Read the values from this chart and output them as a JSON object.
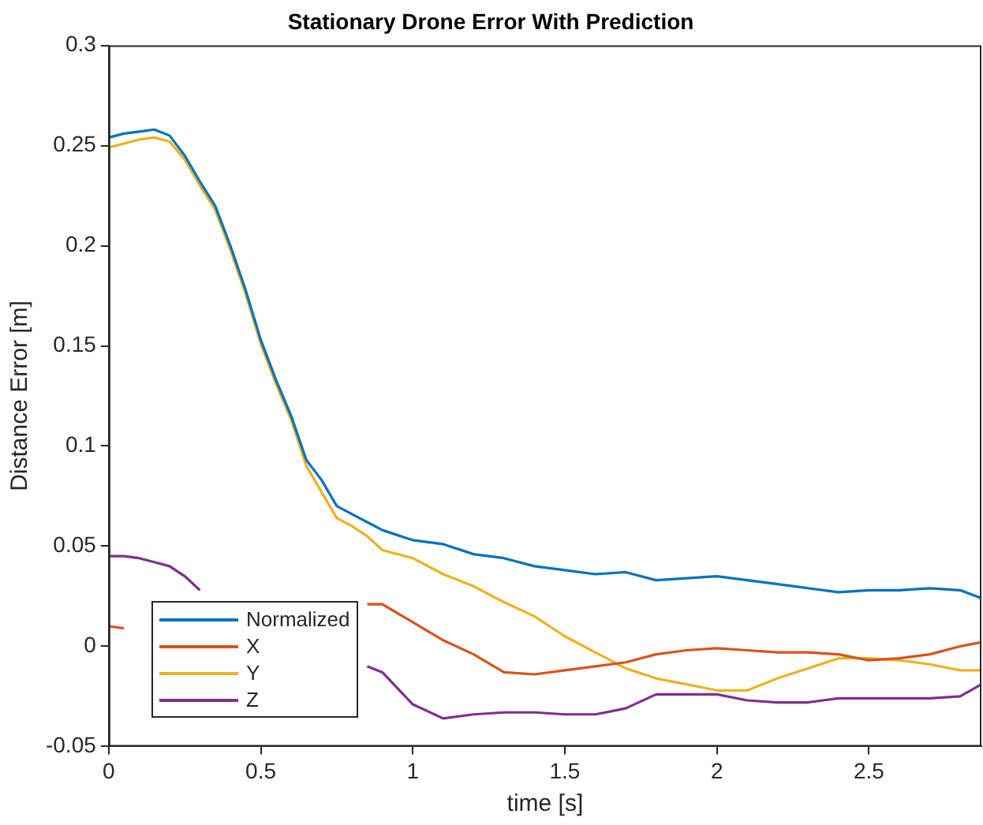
{
  "chart_data": {
    "type": "line",
    "title": "Stationary Drone Error With Prediction",
    "xlabel": "time [s]",
    "ylabel": "Distance Error [m]",
    "x": [
      0,
      0.05,
      0.1,
      0.15,
      0.2,
      0.25,
      0.3,
      0.35,
      0.4,
      0.45,
      0.5,
      0.55,
      0.6,
      0.65,
      0.7,
      0.75,
      0.8,
      0.85,
      0.9,
      1.0,
      1.1,
      1.2,
      1.3,
      1.4,
      1.5,
      1.6,
      1.7,
      1.8,
      1.9,
      2.0,
      2.1,
      2.2,
      2.3,
      2.4,
      2.5,
      2.6,
      2.7,
      2.8,
      2.87
    ],
    "series": [
      {
        "name": "Normalized",
        "color": "#0072bd",
        "values": [
          0.254,
          0.256,
          0.257,
          0.258,
          0.255,
          0.245,
          0.232,
          0.22,
          0.2,
          0.178,
          0.153,
          0.133,
          0.115,
          0.093,
          0.083,
          0.07,
          0.066,
          0.062,
          0.058,
          0.053,
          0.051,
          0.046,
          0.044,
          0.04,
          0.038,
          0.036,
          0.037,
          0.033,
          0.034,
          0.035,
          0.033,
          0.031,
          0.029,
          0.027,
          0.028,
          0.028,
          0.029,
          0.028,
          0.024
        ]
      },
      {
        "name": "X",
        "color": "#d95319",
        "values": [
          0.01,
          0.009,
          null,
          null,
          null,
          null,
          null,
          null,
          null,
          null,
          null,
          null,
          null,
          null,
          null,
          null,
          null,
          0.021,
          0.021,
          0.012,
          0.003,
          -0.004,
          -0.013,
          -0.014,
          -0.012,
          -0.01,
          -0.008,
          -0.004,
          -0.002,
          -0.001,
          -0.002,
          -0.003,
          -0.003,
          -0.004,
          -0.007,
          -0.006,
          -0.004,
          0.0,
          0.002
        ]
      },
      {
        "name": "Y",
        "color": "#edb120",
        "values": [
          0.249,
          0.251,
          0.253,
          0.254,
          0.252,
          0.243,
          0.23,
          0.218,
          0.198,
          0.176,
          0.151,
          0.131,
          0.113,
          0.09,
          0.077,
          0.064,
          0.06,
          0.055,
          0.048,
          0.044,
          0.036,
          0.03,
          0.022,
          0.015,
          0.005,
          -0.003,
          -0.011,
          -0.016,
          -0.019,
          -0.022,
          -0.022,
          -0.016,
          -0.011,
          -0.006,
          -0.006,
          -0.007,
          -0.009,
          -0.012,
          -0.012
        ]
      },
      {
        "name": "Z",
        "color": "#7e2f8e",
        "values": [
          0.045,
          0.045,
          0.044,
          0.042,
          0.04,
          0.035,
          0.028,
          null,
          null,
          null,
          null,
          null,
          null,
          null,
          null,
          null,
          null,
          -0.01,
          -0.013,
          -0.029,
          -0.036,
          -0.034,
          -0.033,
          -0.033,
          -0.034,
          -0.034,
          -0.031,
          -0.024,
          -0.024,
          -0.024,
          -0.027,
          -0.028,
          -0.028,
          -0.026,
          -0.026,
          -0.026,
          -0.026,
          -0.025,
          -0.019
        ]
      }
    ],
    "xlim": [
      0,
      2.87
    ],
    "xticks": [
      0,
      0.5,
      1,
      1.5,
      2,
      2.5
    ],
    "ylim": [
      -0.05,
      0.3
    ],
    "yticks": [
      -0.05,
      0,
      0.05,
      0.1,
      0.15,
      0.2,
      0.25,
      0.3
    ],
    "grid": false,
    "legend": "bottom left",
    "marker": "none",
    "line_style": "solid"
  }
}
